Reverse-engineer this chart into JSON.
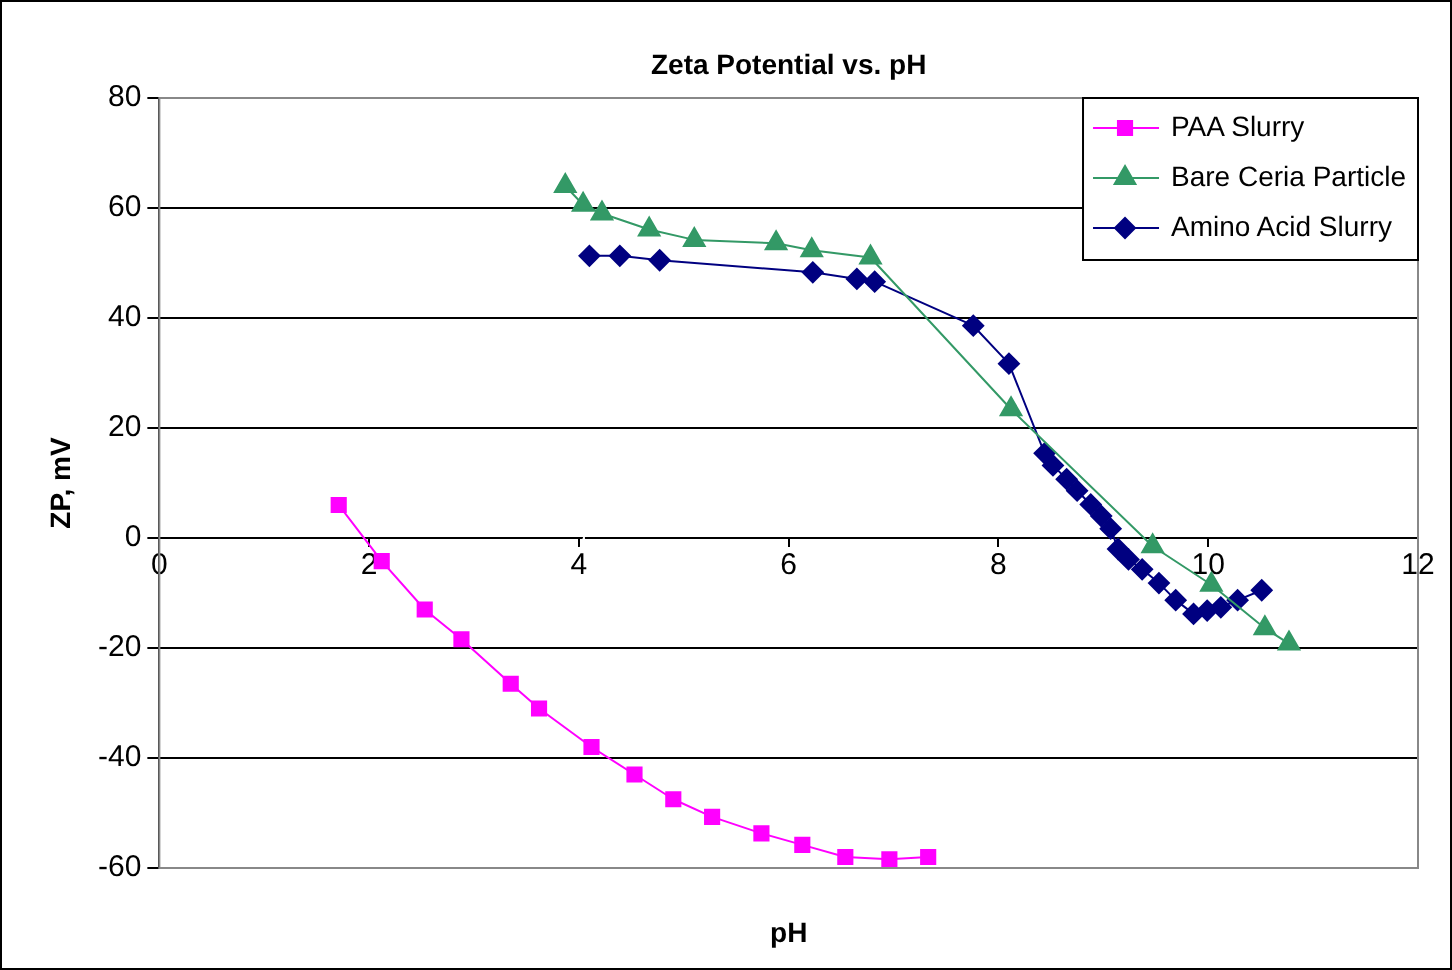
{
  "chart_data": {
    "type": "line",
    "title": "Zeta Potential vs. pH",
    "xlabel": "pH",
    "ylabel": "ZP, mV",
    "xlim": [
      0,
      12
    ],
    "xticks": [
      0,
      2,
      4,
      6,
      8,
      10,
      12
    ],
    "ylim": [
      -60,
      80
    ],
    "yticks": [
      -60,
      -40,
      -20,
      0,
      20,
      40,
      60,
      80
    ],
    "grid": "y",
    "legend": "top right",
    "series": [
      {
        "name": "PAA Slurry",
        "color": "#ff00ff",
        "marker": "square",
        "x": [
          1.71,
          2.12,
          2.53,
          2.88,
          3.35,
          3.62,
          4.12,
          4.53,
          4.9,
          5.27,
          5.74,
          6.13,
          6.54,
          6.96,
          7.33
        ],
        "values": [
          6,
          -4.2,
          -13,
          -18.4,
          -26.5,
          -31,
          -38,
          -43,
          -47.5,
          -50.7,
          -53.7,
          -55.8,
          -58,
          -58.4,
          -58
        ]
      },
      {
        "name": "Bare Ceria Particle",
        "color": "#339966",
        "marker": "triangle",
        "x": [
          3.87,
          4.04,
          4.22,
          4.67,
          5.1,
          5.88,
          6.22,
          6.78,
          8.12,
          9.47,
          10.03,
          10.54,
          10.77
        ],
        "values": [
          64,
          60.6,
          59,
          56.1,
          54.2,
          53.6,
          52.3,
          51,
          23.4,
          -1.5,
          -8.5,
          -16.4,
          -19.2
        ]
      },
      {
        "name": "Amino Acid Slurry",
        "color": "#000080",
        "marker": "diamond",
        "x": [
          4.1,
          4.39,
          4.77,
          6.23,
          6.65,
          6.82,
          7.76,
          8.1,
          8.44,
          8.52,
          8.65,
          8.75,
          8.88,
          8.98,
          9.07,
          9.14,
          9.24,
          9.37,
          9.53,
          9.69,
          9.86,
          9.99,
          10.12,
          10.28,
          10.51
        ],
        "values": [
          51.3,
          51.3,
          50.5,
          48.3,
          47.1,
          46.6,
          38.6,
          31.7,
          15.4,
          13.2,
          10.7,
          8.6,
          6.1,
          4,
          1.7,
          -2,
          -3.9,
          -5.7,
          -8.2,
          -11.3,
          -13.8,
          -13.2,
          -12.6,
          -11.3,
          -9.5
        ]
      }
    ]
  }
}
